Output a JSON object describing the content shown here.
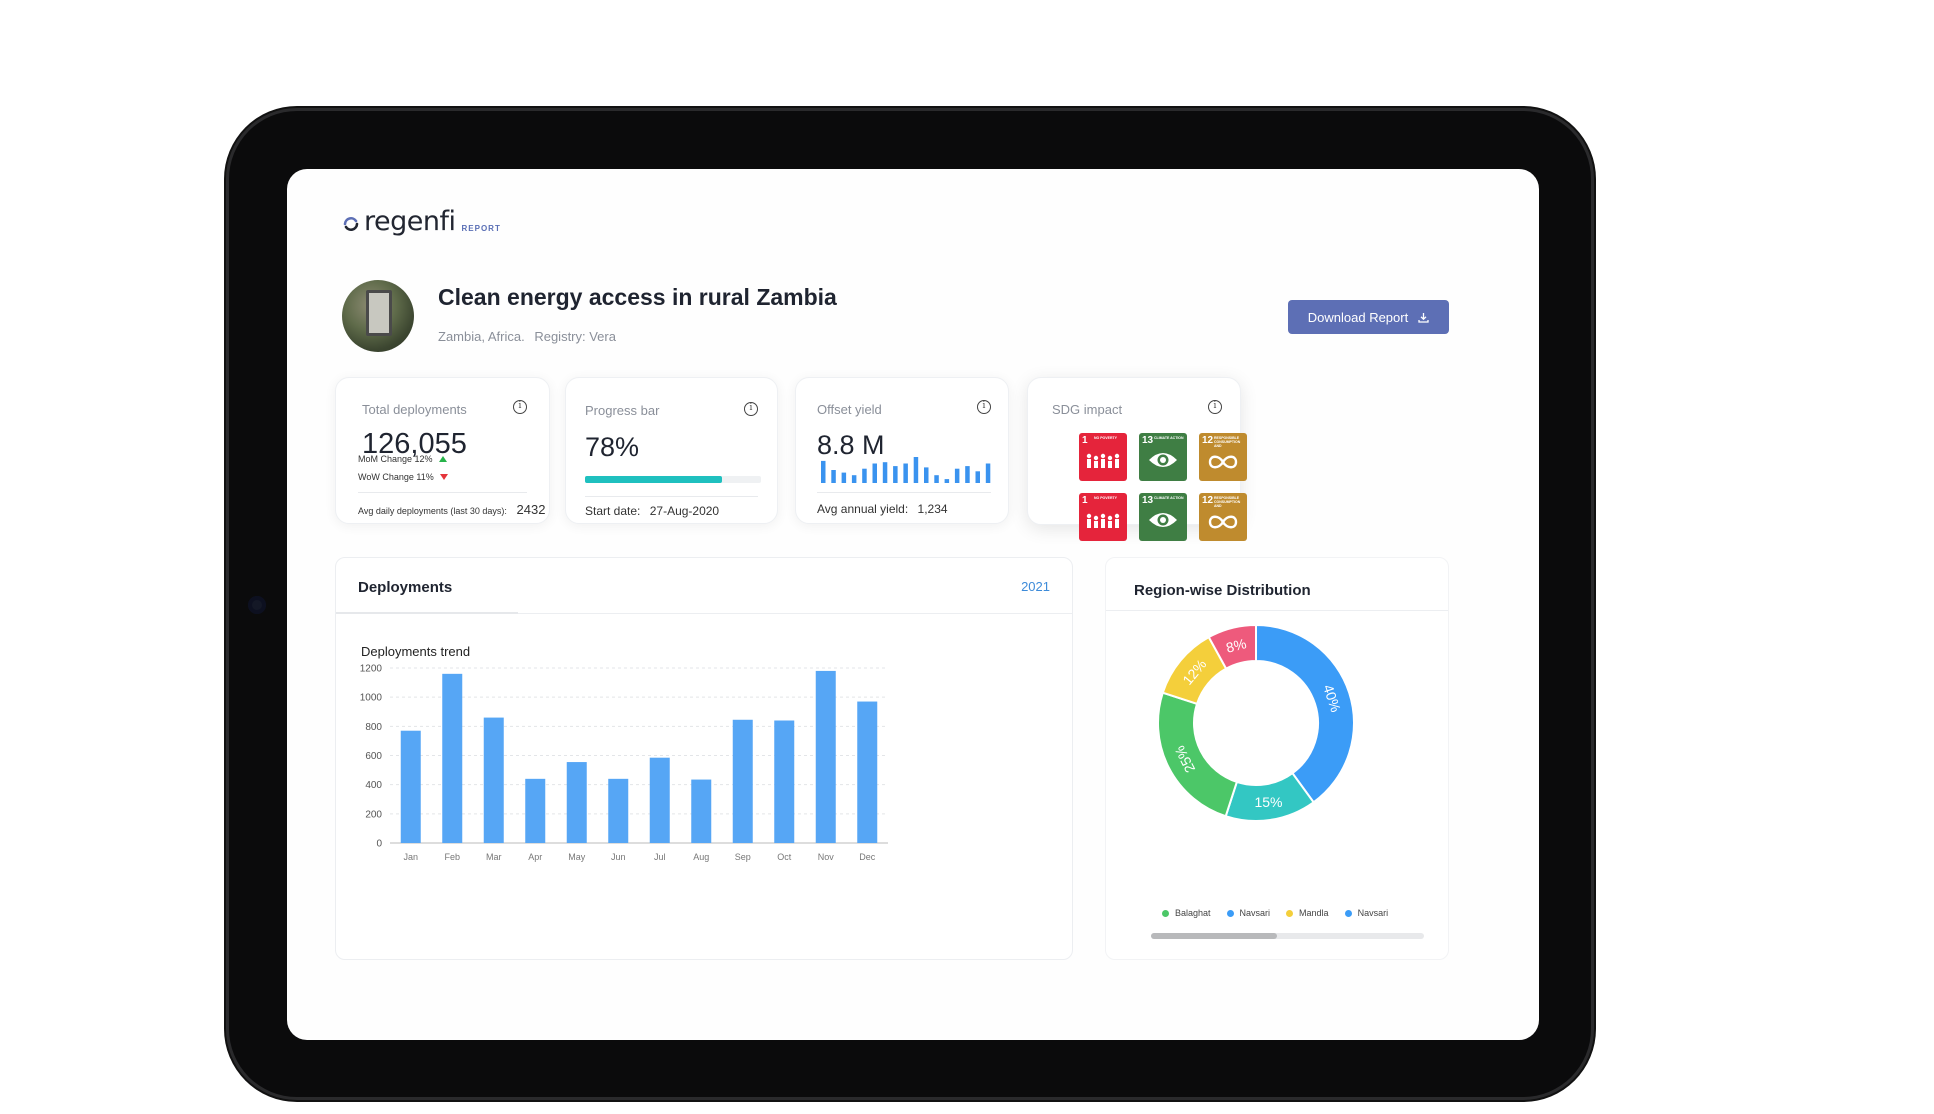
{
  "brand": {
    "name": "regenfi",
    "sub": "REPORT"
  },
  "project": {
    "title": "Clean energy access in rural Zambia",
    "location": "Zambia, Africa.",
    "registry": "Registry: Vera",
    "download_label": "Download Report"
  },
  "cards": {
    "total": {
      "title": "Total deployments",
      "value": "126,055",
      "mom": "MoM Change 12%",
      "wow": "WoW Change 11%",
      "avg_label": "Avg daily deployments (last 30 days):",
      "avg_value": "2432"
    },
    "progress": {
      "title": "Progress bar",
      "value": "78%",
      "fraction": 0.78,
      "start_label": "Start date:",
      "start_value": "27-Aug-2020"
    },
    "offset": {
      "title": "Offset yield",
      "value": "8.8 M",
      "avg_label": "Avg annual yield:",
      "avg_value": "1,234",
      "spark": [
        0.85,
        0.5,
        0.4,
        0.3,
        0.55,
        0.75,
        0.8,
        0.65,
        0.75,
        1.0,
        0.6,
        0.3,
        0.15,
        0.55,
        0.65,
        0.45,
        0.75
      ]
    },
    "sdg": {
      "title": "SDG impact",
      "tiles": [
        {
          "num": "1",
          "label": "NO POVERTY",
          "color": "#e5243b",
          "icon": "family-icon"
        },
        {
          "num": "13",
          "label": "CLIMATE ACTION",
          "color": "#3f7e44",
          "icon": "eye-globe-icon"
        },
        {
          "num": "12",
          "label": "RESPONSIBLE CONSUMPTION AND PRODUCTION",
          "color": "#bf8b2e",
          "icon": "infinity-icon"
        },
        {
          "num": "1",
          "label": "NO POVERTY",
          "color": "#e5243b",
          "icon": "family-icon"
        },
        {
          "num": "13",
          "label": "CLIMATE ACTION",
          "color": "#3f7e44",
          "icon": "eye-globe-icon"
        },
        {
          "num": "12",
          "label": "RESPONSIBLE CONSUMPTION AND PRODUCTION",
          "color": "#bf8b2e",
          "icon": "infinity-icon"
        }
      ]
    }
  },
  "deployments": {
    "title": "Deployments",
    "year": "2021",
    "subtitle": "Deployments trend"
  },
  "region": {
    "title": "Region-wise Distribution",
    "scroll_fraction": 0.46
  },
  "chart_data": [
    {
      "type": "bar",
      "title": "Deployments trend",
      "categories": [
        "Jan",
        "Feb",
        "Mar",
        "Apr",
        "May",
        "Jun",
        "Jul",
        "Aug",
        "Sep",
        "Oct",
        "Nov",
        "Dec"
      ],
      "values": [
        770,
        1160,
        860,
        440,
        555,
        440,
        585,
        435,
        845,
        840,
        1180,
        970
      ],
      "ylim": [
        0,
        1200
      ],
      "yticks": [
        0,
        200,
        400,
        600,
        800,
        1000,
        1200
      ],
      "color": "#56a6f5",
      "grid": true
    },
    {
      "type": "pie",
      "donut": true,
      "slices": [
        {
          "label": "40%",
          "value": 40,
          "color": "#3b9cf7"
        },
        {
          "label": "15%",
          "value": 15,
          "color": "#33c7c3"
        },
        {
          "label": "25%",
          "value": 25,
          "color": "#4cc768"
        },
        {
          "label": "12%",
          "value": 12,
          "color": "#f4cf3b"
        },
        {
          "label": "8%",
          "value": 8,
          "color": "#ee5a7c"
        }
      ],
      "legend": [
        {
          "name": "Balaghat",
          "color": "#4cc768"
        },
        {
          "name": "Navsari",
          "color": "#3b9cf7"
        },
        {
          "name": "Mandla",
          "color": "#f4cf3b"
        },
        {
          "name": "Navsari",
          "color": "#3b9cf7"
        }
      ],
      "legend_position": "bottom"
    }
  ],
  "colors": {
    "accent": "#5d6fb5",
    "progress": "#1fc0bf",
    "up": "#27b34a",
    "down": "#e5343b"
  }
}
